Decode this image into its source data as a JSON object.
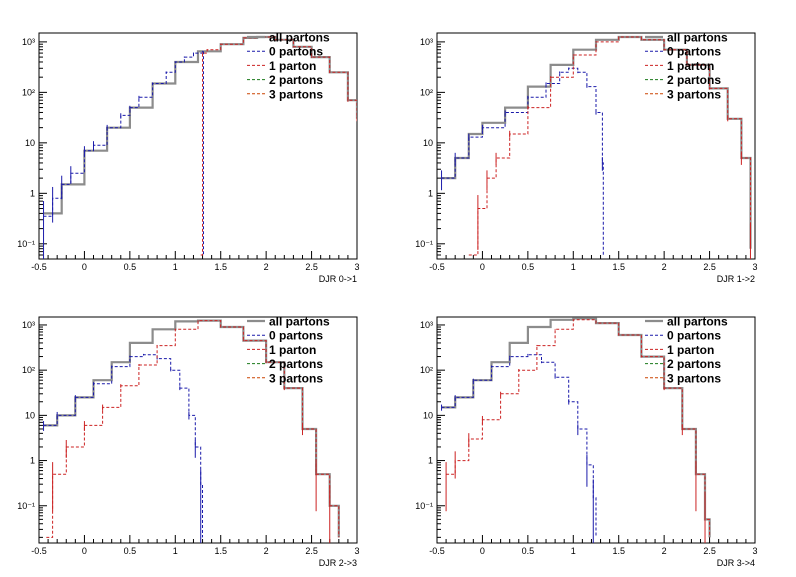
{
  "colors": {
    "all": "#8c8c8c",
    "p0": "#1a1aaa",
    "p1": "#cc2222",
    "p2": "#1a7a1a",
    "p3": "#cc4400",
    "axis": "#000000"
  },
  "chart_data": [
    {
      "type": "histogram",
      "xlabel": "DJR 0->1",
      "xlim": [
        -0.5,
        3
      ],
      "ylim": [
        0.05,
        1500
      ],
      "log_y": true,
      "xticks": [
        "-0.5",
        "0",
        "0.5",
        "1",
        "1.5",
        "2",
        "2.5",
        "3"
      ],
      "yticks": [
        "10⁻¹",
        "1",
        "10",
        "10²",
        "10³"
      ],
      "legend": [
        "all partons",
        "0 partons",
        "1 parton",
        "2 partons",
        "3 partons"
      ],
      "legend_position": "top-right",
      "series": [
        {
          "name": "all partons",
          "x": [
            -0.45,
            -0.25,
            0,
            0.25,
            0.5,
            0.75,
            1,
            1.25,
            1.5,
            1.75,
            1.9,
            2.1,
            2.3,
            2.5,
            2.7,
            2.9,
            3.0
          ],
          "y": [
            0.4,
            1.5,
            7,
            20,
            50,
            150,
            400,
            650,
            900,
            1200,
            1250,
            1100,
            800,
            500,
            250,
            70,
            30
          ]
        },
        {
          "name": "0 partons",
          "x": [
            -0.45,
            -0.35,
            -0.25,
            -0.15,
            0,
            0.1,
            0.25,
            0.4,
            0.5,
            0.6,
            0.75,
            0.9,
            1.0,
            1.1,
            1.2,
            1.3,
            1.31
          ],
          "y": [
            0.35,
            0.8,
            1.5,
            2.5,
            7,
            9,
            20,
            35,
            50,
            80,
            150,
            250,
            400,
            500,
            600,
            650,
            0.06
          ]
        },
        {
          "name": "1 parton",
          "x": [
            1.28,
            1.3,
            1.35,
            1.5,
            1.75,
            1.9,
            2.1,
            2.3,
            2.5,
            2.7,
            2.9,
            3.0
          ],
          "y": [
            0.06,
            600,
            700,
            900,
            1200,
            1250,
            1100,
            800,
            500,
            250,
            70,
            30
          ]
        },
        {
          "name": "2 partons",
          "x": [],
          "y": []
        },
        {
          "name": "3 partons",
          "x": [],
          "y": []
        }
      ]
    },
    {
      "type": "histogram",
      "xlabel": "DJR 1->2",
      "xlim": [
        -0.5,
        3
      ],
      "ylim": [
        0.05,
        1500
      ],
      "log_y": true,
      "xticks": [
        "-0.5",
        "0",
        "0.5",
        "1",
        "1.5",
        "2",
        "2.5",
        "3"
      ],
      "yticks": [
        "10⁻¹",
        "1",
        "10",
        "10²",
        "10³"
      ],
      "legend": [
        "all partons",
        "0 partons",
        "1 parton",
        "2 partons",
        "3 partons"
      ],
      "legend_position": "top-right",
      "series": [
        {
          "name": "all partons",
          "x": [
            -0.45,
            -0.3,
            -0.15,
            0,
            0.25,
            0.5,
            0.75,
            1,
            1.25,
            1.5,
            1.75,
            2,
            2.25,
            2.5,
            2.7,
            2.85,
            2.95
          ],
          "y": [
            2,
            5,
            15,
            25,
            50,
            130,
            350,
            700,
            1100,
            1250,
            1100,
            700,
            350,
            120,
            30,
            5,
            0.08
          ]
        },
        {
          "name": "0 partons",
          "x": [
            -0.45,
            -0.3,
            -0.15,
            0,
            0.25,
            0.5,
            0.7,
            0.85,
            0.95,
            1.05,
            1.15,
            1.25,
            1.32,
            1.33
          ],
          "y": [
            2,
            5,
            13,
            20,
            40,
            80,
            150,
            250,
            300,
            250,
            130,
            40,
            4,
            0.06
          ]
        },
        {
          "name": "1 parton",
          "x": [
            -0.15,
            -0.05,
            0.05,
            0.15,
            0.3,
            0.5,
            0.75,
            1,
            1.25,
            1.5,
            1.75,
            2,
            2.25,
            2.5,
            2.7,
            2.85,
            2.95
          ],
          "y": [
            0.06,
            0.5,
            2,
            5,
            15,
            50,
            200,
            550,
            1000,
            1250,
            1100,
            700,
            350,
            120,
            30,
            5,
            0.08
          ]
        },
        {
          "name": "2 partons",
          "x": [],
          "y": []
        },
        {
          "name": "3 partons",
          "x": [],
          "y": []
        }
      ]
    },
    {
      "type": "histogram",
      "xlabel": "DJR 2->3",
      "xlim": [
        -0.5,
        3
      ],
      "ylim": [
        0.015,
        1500
      ],
      "log_y": true,
      "xticks": [
        "-0.5",
        "0",
        "0.5",
        "1",
        "1.5",
        "2",
        "2.5",
        "3"
      ],
      "yticks": [
        "10⁻¹",
        "1",
        "10",
        "10²",
        "10³"
      ],
      "legend": [
        "all partons",
        "0 partons",
        "1 parton",
        "2 partons",
        "3 partons"
      ],
      "legend_position": "top-right",
      "series": [
        {
          "name": "all partons",
          "x": [
            -0.45,
            -0.3,
            -0.1,
            0.1,
            0.3,
            0.5,
            0.75,
            1,
            1.25,
            1.5,
            1.75,
            2,
            2.2,
            2.4,
            2.55,
            2.7,
            2.8
          ],
          "y": [
            6,
            10,
            25,
            60,
            150,
            400,
            800,
            1200,
            1250,
            900,
            450,
            150,
            40,
            5,
            0.5,
            0.1,
            0.02
          ]
        },
        {
          "name": "0 partons",
          "x": [
            -0.45,
            -0.3,
            -0.1,
            0.1,
            0.3,
            0.5,
            0.65,
            0.8,
            0.95,
            1.05,
            1.15,
            1.22,
            1.28,
            1.3
          ],
          "y": [
            6,
            10,
            25,
            50,
            120,
            200,
            220,
            180,
            100,
            40,
            10,
            2,
            0.3,
            0.02
          ]
        },
        {
          "name": "1 parton",
          "x": [
            -0.42,
            -0.35,
            -0.2,
            0,
            0.2,
            0.4,
            0.6,
            0.8,
            1,
            1.25,
            1.5,
            1.75,
            2,
            2.2,
            2.4,
            2.55,
            2.7,
            2.8
          ],
          "y": [
            0.02,
            0.5,
            2,
            6,
            15,
            45,
            130,
            350,
            800,
            1250,
            900,
            450,
            150,
            40,
            5,
            0.5,
            0.1,
            0.02
          ]
        },
        {
          "name": "2 partons",
          "x": [],
          "y": []
        },
        {
          "name": "3 partons",
          "x": [],
          "y": []
        }
      ]
    },
    {
      "type": "histogram",
      "xlabel": "DJR 3->4",
      "xlim": [
        -0.5,
        3
      ],
      "ylim": [
        0.015,
        1500
      ],
      "log_y": true,
      "xticks": [
        "-0.5",
        "0",
        "0.5",
        "1",
        "1.5",
        "2",
        "2.5",
        "3"
      ],
      "yticks": [
        "10⁻¹",
        "1",
        "10",
        "10²",
        "10³"
      ],
      "legend": [
        "all partons",
        "0 partons",
        "1 parton",
        "2 partons",
        "3 partons"
      ],
      "legend_position": "top-right",
      "series": [
        {
          "name": "all partons",
          "x": [
            -0.45,
            -0.3,
            -0.1,
            0.1,
            0.3,
            0.5,
            0.75,
            1,
            1.25,
            1.5,
            1.75,
            2,
            2.2,
            2.35,
            2.45,
            2.5
          ],
          "y": [
            15,
            25,
            60,
            150,
            400,
            900,
            1300,
            1400,
            1100,
            600,
            200,
            40,
            5,
            0.5,
            0.05,
            0.02
          ]
        },
        {
          "name": "0 partons",
          "x": [
            -0.45,
            -0.3,
            -0.1,
            0.1,
            0.3,
            0.5,
            0.65,
            0.8,
            0.95,
            1.05,
            1.15,
            1.22,
            1.25
          ],
          "y": [
            15,
            25,
            60,
            120,
            200,
            220,
            150,
            70,
            20,
            5,
            0.8,
            0.15,
            0.02
          ]
        },
        {
          "name": "1 parton",
          "x": [
            -0.4,
            -0.3,
            -0.15,
            0,
            0.2,
            0.4,
            0.6,
            0.8,
            1,
            1.25,
            1.5,
            1.75,
            2,
            2.2,
            2.35,
            2.45,
            2.5
          ],
          "y": [
            0.5,
            1,
            3,
            8,
            30,
            100,
            350,
            800,
            1300,
            1100,
            600,
            200,
            40,
            5,
            0.5,
            0.05,
            0.02
          ]
        },
        {
          "name": "2 partons",
          "x": [],
          "y": []
        },
        {
          "name": "3 partons",
          "x": [],
          "y": []
        }
      ]
    }
  ]
}
